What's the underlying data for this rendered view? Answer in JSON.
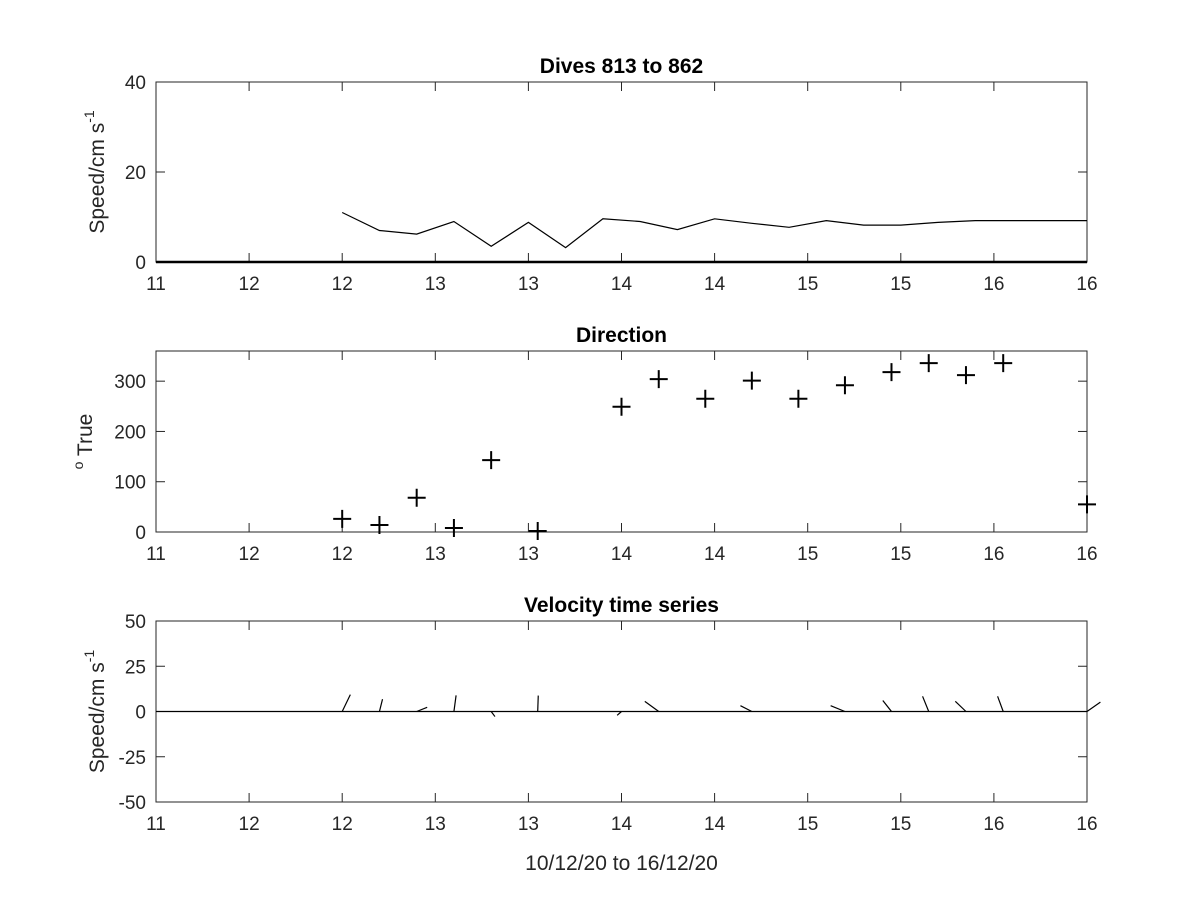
{
  "chart_data": [
    {
      "type": "line",
      "title": "Dives 813 to 862",
      "ylabel": "Speed/cm s",
      "ylabel_superscript": "-1",
      "xlim": [
        11,
        16
      ],
      "ylim": [
        0,
        40
      ],
      "x_tick_labels": [
        "11",
        "12",
        "12",
        "13",
        "13",
        "14",
        "14",
        "15",
        "15",
        "16",
        "16"
      ],
      "y_ticks": [
        0,
        20,
        40
      ],
      "series": [
        {
          "x": [
            12.0,
            12.2,
            12.4,
            12.6,
            12.8,
            13.0,
            13.2,
            13.4,
            13.6,
            13.8,
            14.0,
            14.2,
            14.4,
            14.6,
            14.8,
            15.0,
            15.2,
            15.4,
            15.6,
            15.8,
            16.0
          ],
          "values": [
            11,
            7,
            6.2,
            9,
            3.5,
            8.8,
            3.2,
            9.6,
            9,
            7.2,
            9.6,
            8.6,
            7.7,
            9.2,
            8.2,
            8.2,
            8.8,
            9.2,
            9.2,
            9.2,
            9.2
          ]
        }
      ]
    },
    {
      "type": "scatter",
      "title": "Direction",
      "ylabel": "True",
      "ylabel_prefix": "o",
      "xlim": [
        11,
        16
      ],
      "ylim": [
        0,
        360
      ],
      "x_tick_labels": [
        "11",
        "12",
        "12",
        "13",
        "13",
        "14",
        "14",
        "15",
        "15",
        "16",
        "16"
      ],
      "y_ticks": [
        0,
        100,
        200,
        300
      ],
      "marker": "+",
      "series": [
        {
          "x": [
            12.0,
            12.2,
            12.4,
            12.6,
            12.8,
            13.05,
            13.5,
            13.7,
            13.95,
            14.2,
            14.45,
            14.7,
            14.95,
            15.15,
            15.35,
            15.55,
            16.0
          ],
          "values": [
            26,
            14,
            68,
            8,
            143,
            2,
            249,
            304,
            265,
            301,
            265,
            292,
            318,
            336,
            312,
            336,
            55
          ]
        }
      ]
    },
    {
      "type": "line",
      "subtype": "vector",
      "title": "Velocity time series",
      "ylabel": "Speed/cm s",
      "ylabel_superscript": "-1",
      "xlabel": "10/12/20 to 16/12/20",
      "xlim": [
        11,
        16
      ],
      "ylim": [
        -50,
        50
      ],
      "x_tick_labels": [
        "11",
        "12",
        "12",
        "13",
        "13",
        "14",
        "14",
        "15",
        "15",
        "16",
        "16"
      ],
      "y_ticks": [
        -50,
        -25,
        0,
        25,
        50
      ],
      "vectors": [
        {
          "x": 12.0,
          "u": 4.5,
          "v": 9.3
        },
        {
          "x": 12.2,
          "u": 1.7,
          "v": 6.8
        },
        {
          "x": 12.4,
          "u": 5.8,
          "v": 2.3
        },
        {
          "x": 12.6,
          "u": 1.2,
          "v": 8.9
        },
        {
          "x": 12.8,
          "u": 2.1,
          "v": -2.8
        },
        {
          "x": 13.05,
          "u": 0.3,
          "v": 8.8
        },
        {
          "x": 13.5,
          "u": -2.4,
          "v": -2.1
        },
        {
          "x": 13.7,
          "u": -7.7,
          "v": 5.6
        },
        {
          "x": 14.2,
          "u": -6.3,
          "v": 3.2
        },
        {
          "x": 14.7,
          "u": -7.9,
          "v": 3.2
        },
        {
          "x": 14.95,
          "u": -4.8,
          "v": 6.1
        },
        {
          "x": 15.15,
          "u": -3.4,
          "v": 8.4
        },
        {
          "x": 15.35,
          "u": -5.9,
          "v": 5.6
        },
        {
          "x": 15.55,
          "u": -3.1,
          "v": 8.4
        },
        {
          "x": 16.0,
          "u": 7.4,
          "v": 5.2
        }
      ]
    }
  ]
}
